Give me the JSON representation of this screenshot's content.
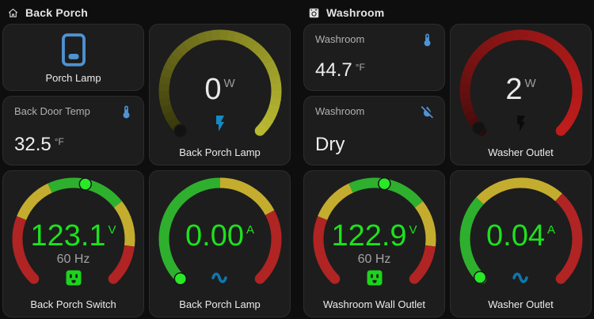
{
  "back_porch": {
    "title": "Back Porch",
    "porch_lamp": {
      "label": "Porch Lamp"
    },
    "back_door_temp": {
      "title": "Back Door Temp",
      "value": "32.5",
      "unit": "°F"
    },
    "lamp_power": {
      "label": "Back Porch Lamp",
      "value": "0",
      "unit": "W",
      "value_color": "#e9e9e9",
      "unit_color": "#9c9c9c",
      "secondary": "",
      "icon": "flash-icon",
      "icon_color": "#1789c2",
      "arc": {
        "type": "gradient",
        "from": "#30300a",
        "to": "#b9b932",
        "ease": 0.8
      },
      "dot": {
        "angle": -135,
        "color": "#121212"
      }
    },
    "switch_voltage": {
      "label": "Back Porch Switch",
      "value": "123.1",
      "unit": "V",
      "value_color": "#1de21d",
      "unit_color": "#1de21d",
      "secondary": "60 Hz",
      "icon": "outlet-icon",
      "icon_color": "#1bd41b",
      "arc": {
        "type": "segments",
        "segments": [
          {
            "from": -135,
            "to": -68,
            "color": "#b02424"
          },
          {
            "from": -68,
            "to": -25,
            "color": "#c4ad2e"
          },
          {
            "from": -25,
            "to": 52,
            "color": "#2eb02e"
          },
          {
            "from": 52,
            "to": 97,
            "color": "#c4ad2e"
          },
          {
            "from": 97,
            "to": 135,
            "color": "#b02424"
          }
        ]
      },
      "dot": {
        "angle": 12,
        "color": "#28e828"
      }
    },
    "lamp_current": {
      "label": "Back Porch Lamp",
      "value": "0.00",
      "unit": "A",
      "value_color": "#1de21d",
      "unit_color": "#1de21d",
      "secondary": "",
      "icon": "ac-icon",
      "icon_color": "#0f76ad",
      "arc": {
        "type": "segments",
        "segments": [
          {
            "from": -135,
            "to": 0,
            "color": "#2eb02e"
          },
          {
            "from": 0,
            "to": 62,
            "color": "#c4ad2e"
          },
          {
            "from": 62,
            "to": 135,
            "color": "#b02424"
          }
        ]
      },
      "dot": {
        "angle": -135,
        "color": "#28e828"
      }
    }
  },
  "washroom": {
    "title": "Washroom",
    "temp": {
      "title": "Washroom",
      "value": "44.7",
      "unit": "°F"
    },
    "moisture": {
      "title": "Washroom",
      "value": "Dry"
    },
    "washer_power": {
      "label": "Washer Outlet",
      "value": "2",
      "unit": "W",
      "value_color": "#e9e9e9",
      "unit_color": "#9c9c9c",
      "secondary": "",
      "icon": "flash-icon",
      "icon_color": "#0b0b0b",
      "arc": {
        "type": "gradient",
        "from": "#2d0909",
        "to": "#c01c1c",
        "ease": 0.55
      },
      "dot": {
        "angle": -131,
        "color": "#121212"
      }
    },
    "wall_outlet_voltage": {
      "label": "Washroom Wall Outlet",
      "value": "122.9",
      "unit": "V",
      "value_color": "#1de21d",
      "unit_color": "#1de21d",
      "secondary": "60 Hz",
      "icon": "outlet-icon",
      "icon_color": "#1bd41b",
      "arc": {
        "type": "segments",
        "segments": [
          {
            "from": -135,
            "to": -68,
            "color": "#b02424"
          },
          {
            "from": -68,
            "to": -25,
            "color": "#c4ad2e"
          },
          {
            "from": -25,
            "to": 52,
            "color": "#2eb02e"
          },
          {
            "from": 52,
            "to": 97,
            "color": "#c4ad2e"
          },
          {
            "from": 97,
            "to": 135,
            "color": "#b02424"
          }
        ]
      },
      "dot": {
        "angle": 10,
        "color": "#28e828"
      }
    },
    "washer_current": {
      "label": "Washer Outlet",
      "value": "0.04",
      "unit": "A",
      "value_color": "#1de21d",
      "unit_color": "#1de21d",
      "secondary": "",
      "icon": "ac-icon",
      "icon_color": "#0f76ad",
      "arc": {
        "type": "segments",
        "segments": [
          {
            "from": -135,
            "to": -47,
            "color": "#2eb02e"
          },
          {
            "from": -47,
            "to": 42,
            "color": "#c4ad2e"
          },
          {
            "from": 42,
            "to": 135,
            "color": "#b02424"
          }
        ]
      },
      "dot": {
        "angle": -133,
        "color": "#28e828"
      }
    }
  }
}
